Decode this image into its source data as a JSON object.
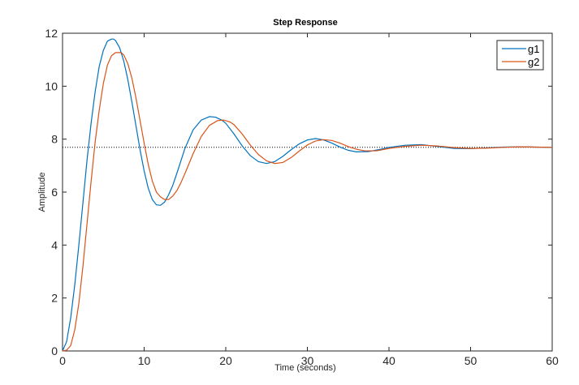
{
  "chart_data": {
    "type": "line",
    "title": "Step Response",
    "xlabel": "Time (seconds)",
    "ylabel": "Amplitude",
    "xlim": [
      0,
      60
    ],
    "ylim": [
      0,
      12
    ],
    "xticks": [
      0,
      10,
      20,
      30,
      40,
      50,
      60
    ],
    "yticks": [
      0,
      2,
      4,
      6,
      8,
      10,
      12
    ],
    "grid": false,
    "legend_position": "top-right",
    "reference_line": {
      "y": 7.69,
      "style": "dotted",
      "color": "#000000"
    },
    "series": [
      {
        "name": "g1",
        "color": "#0072BD",
        "x": [
          0,
          0.5,
          1,
          1.5,
          2,
          2.5,
          3,
          3.5,
          4,
          4.5,
          5,
          5.5,
          6,
          6.25,
          6.5,
          7,
          7.5,
          8,
          8.5,
          9,
          9.5,
          10,
          10.5,
          11,
          11.5,
          12,
          12.5,
          13,
          13.5,
          14,
          15,
          16,
          17,
          18,
          18.75,
          19.5,
          20,
          21,
          22,
          23,
          24,
          25,
          26,
          27,
          28,
          29,
          30,
          31,
          32,
          33,
          34,
          35,
          36,
          37.5,
          39,
          40,
          42,
          44,
          46,
          48,
          50,
          52,
          54,
          56,
          58,
          60
        ],
        "values": [
          0,
          0.35,
          1.25,
          2.5,
          4.0,
          5.6,
          7.2,
          8.6,
          9.8,
          10.75,
          11.35,
          11.7,
          11.78,
          11.78,
          11.72,
          11.45,
          10.95,
          10.25,
          9.4,
          8.5,
          7.6,
          6.8,
          6.15,
          5.72,
          5.52,
          5.5,
          5.62,
          5.9,
          6.25,
          6.7,
          7.65,
          8.35,
          8.72,
          8.85,
          8.83,
          8.72,
          8.6,
          8.2,
          7.75,
          7.38,
          7.15,
          7.08,
          7.15,
          7.35,
          7.6,
          7.82,
          7.97,
          8.02,
          7.97,
          7.85,
          7.7,
          7.58,
          7.52,
          7.53,
          7.62,
          7.69,
          7.77,
          7.79,
          7.72,
          7.65,
          7.64,
          7.67,
          7.7,
          7.71,
          7.7,
          7.69
        ]
      },
      {
        "name": "g2",
        "color": "#D95319",
        "x": [
          0,
          0.5,
          1,
          1.5,
          2,
          2.5,
          3,
          3.5,
          4,
          4.5,
          5,
          5.5,
          6,
          6.5,
          7,
          7.25,
          7.5,
          8,
          8.5,
          9,
          9.5,
          10,
          10.5,
          11,
          11.5,
          12,
          12.5,
          13,
          13.5,
          14,
          14.5,
          15,
          16,
          17,
          18,
          19,
          19.75,
          20.5,
          21,
          22,
          23,
          24,
          25,
          26,
          27,
          28,
          29,
          30,
          31,
          32,
          33,
          34,
          35,
          36,
          37,
          38.5,
          40,
          42,
          44,
          46,
          48,
          50,
          52,
          54,
          56,
          58,
          60
        ],
        "values": [
          0,
          0.03,
          0.2,
          0.8,
          1.8,
          3.2,
          4.8,
          6.4,
          7.9,
          9.1,
          10.1,
          10.8,
          11.15,
          11.27,
          11.27,
          11.25,
          11.18,
          10.85,
          10.3,
          9.55,
          8.7,
          7.85,
          7.05,
          6.42,
          6.0,
          5.82,
          5.72,
          5.72,
          5.85,
          6.05,
          6.35,
          6.7,
          7.45,
          8.1,
          8.52,
          8.7,
          8.72,
          8.65,
          8.55,
          8.2,
          7.78,
          7.42,
          7.18,
          7.08,
          7.12,
          7.3,
          7.55,
          7.78,
          7.93,
          7.98,
          7.95,
          7.85,
          7.72,
          7.62,
          7.56,
          7.56,
          7.65,
          7.73,
          7.77,
          7.74,
          7.68,
          7.65,
          7.66,
          7.69,
          7.71,
          7.7,
          7.69
        ]
      }
    ]
  }
}
